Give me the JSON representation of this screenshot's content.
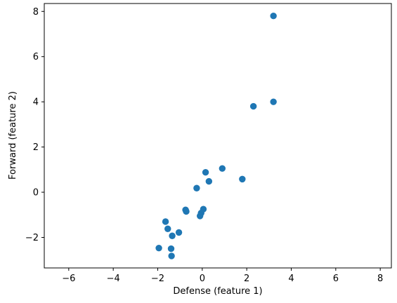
{
  "chart_data": {
    "type": "scatter",
    "title": "",
    "xlabel": "Defense (feature 1)",
    "ylabel": "Forward (feature 2)",
    "xlim": [
      -7.1,
      8.5
    ],
    "ylim": [
      -3.35,
      8.35
    ],
    "xticks": [
      -6,
      -4,
      -2,
      0,
      2,
      4,
      6,
      8
    ],
    "yticks": [
      -2,
      0,
      2,
      4,
      6,
      8
    ],
    "grid": false,
    "point_color": "#1f77b4",
    "points": [
      {
        "x": 3.2,
        "y": 7.8
      },
      {
        "x": 3.2,
        "y": 4.0
      },
      {
        "x": 2.3,
        "y": 3.8
      },
      {
        "x": 0.9,
        "y": 1.05
      },
      {
        "x": 0.15,
        "y": 0.88
      },
      {
        "x": 0.3,
        "y": 0.48
      },
      {
        "x": 1.8,
        "y": 0.58
      },
      {
        "x": -0.25,
        "y": 0.18
      },
      {
        "x": 0.05,
        "y": -0.75
      },
      {
        "x": -0.05,
        "y": -0.92
      },
      {
        "x": -0.1,
        "y": -1.05
      },
      {
        "x": -0.75,
        "y": -0.78
      },
      {
        "x": -0.72,
        "y": -0.85
      },
      {
        "x": -1.65,
        "y": -1.3
      },
      {
        "x": -1.55,
        "y": -1.62
      },
      {
        "x": -1.05,
        "y": -1.78
      },
      {
        "x": -1.35,
        "y": -1.93
      },
      {
        "x": -1.95,
        "y": -2.47
      },
      {
        "x": -1.4,
        "y": -2.5
      },
      {
        "x": -1.38,
        "y": -2.82
      }
    ]
  }
}
